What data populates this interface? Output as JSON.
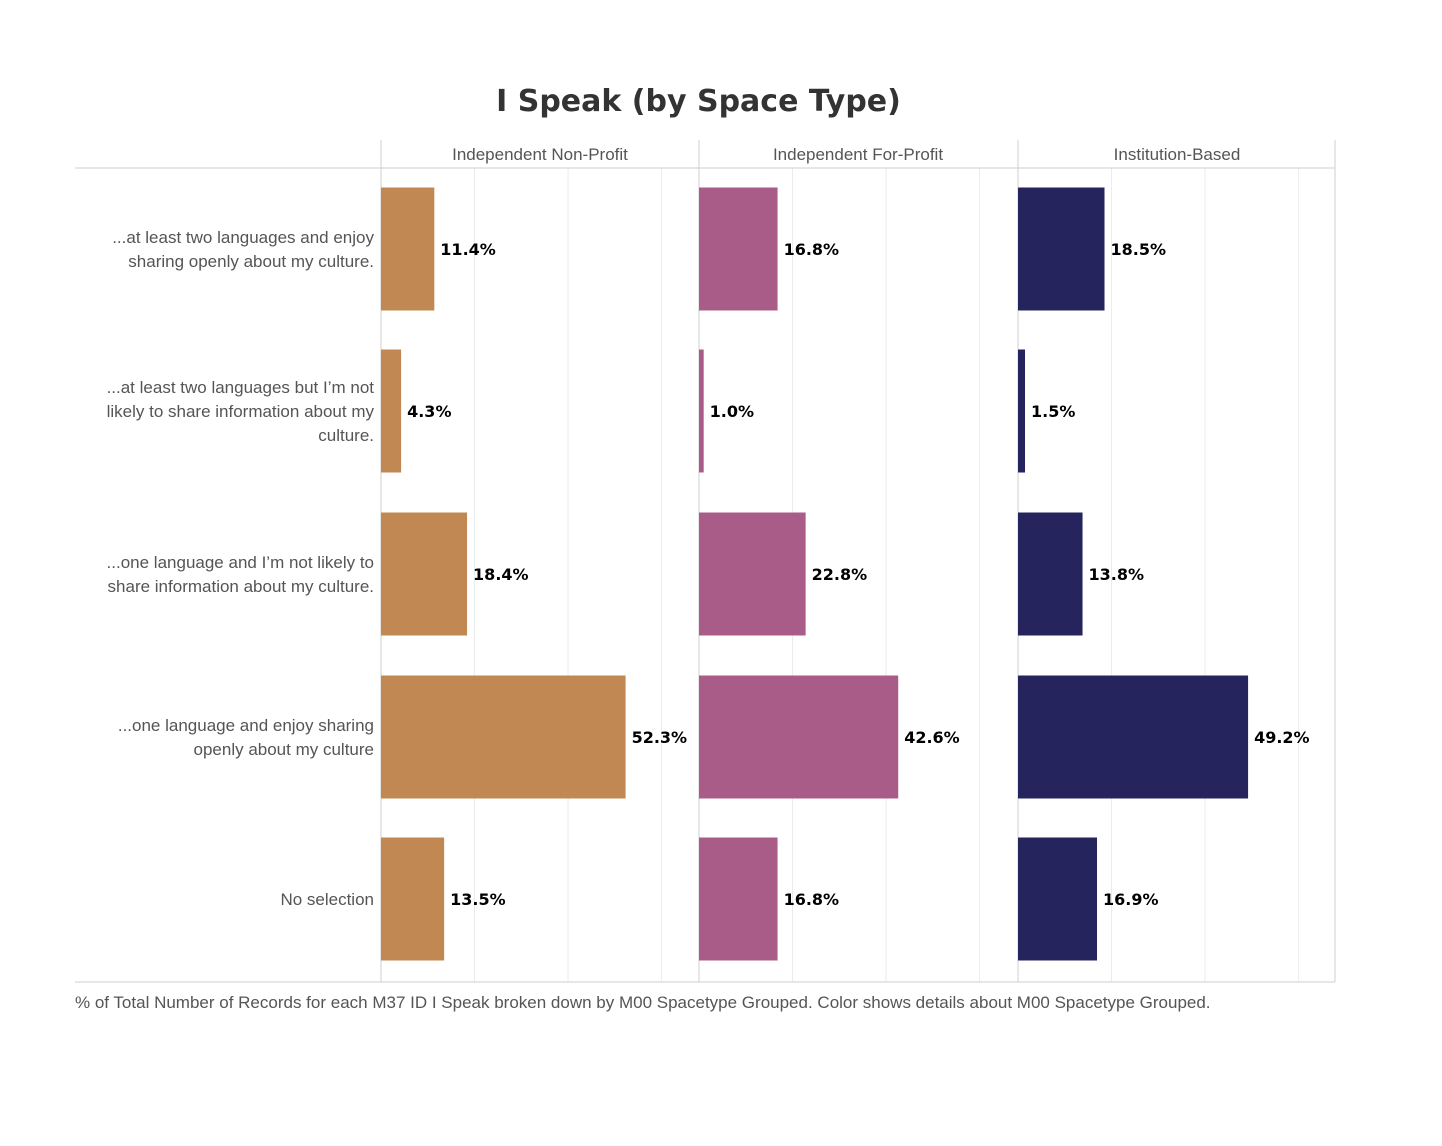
{
  "chart_data": {
    "type": "bar",
    "orientation": "horizontal",
    "title": "I Speak (by Space Type)",
    "categories": [
      [
        "...at least two languages and enjoy",
        "sharing openly about my culture."
      ],
      [
        "...at least two languages but I’m not",
        "likely to share information about my",
        "culture."
      ],
      [
        "...one language and I’m not likely to",
        "share information about my culture."
      ],
      [
        "...one language and enjoy sharing",
        "openly about my culture"
      ],
      [
        "No selection"
      ]
    ],
    "series": [
      {
        "name": "Independent Non-Profit",
        "color": "#C28854",
        "values": [
          11.4,
          4.3,
          18.4,
          52.3,
          13.5
        ],
        "labels": [
          "11.4%",
          "4.3%",
          "18.4%",
          "52.3%",
          "13.5%"
        ]
      },
      {
        "name": "Independent For-Profit",
        "color": "#A85C87",
        "values": [
          16.8,
          1.0,
          22.8,
          42.6,
          16.8
        ],
        "labels": [
          "16.8%",
          "1.0%",
          "22.8%",
          "42.6%",
          "16.8%"
        ]
      },
      {
        "name": "Institution-Based",
        "color": "#25245C",
        "values": [
          18.5,
          1.5,
          13.8,
          49.2,
          16.9
        ],
        "labels": [
          "18.5%",
          "1.5%",
          "13.8%",
          "49.2%",
          "16.9%"
        ]
      }
    ],
    "xlim": [
      0,
      68
    ],
    "grid": true,
    "footer": "% of Total Number of Records for each M37 ID I Speak broken down by M00 Spacetype Grouped.  Color shows details about M00 Spacetype Grouped."
  }
}
